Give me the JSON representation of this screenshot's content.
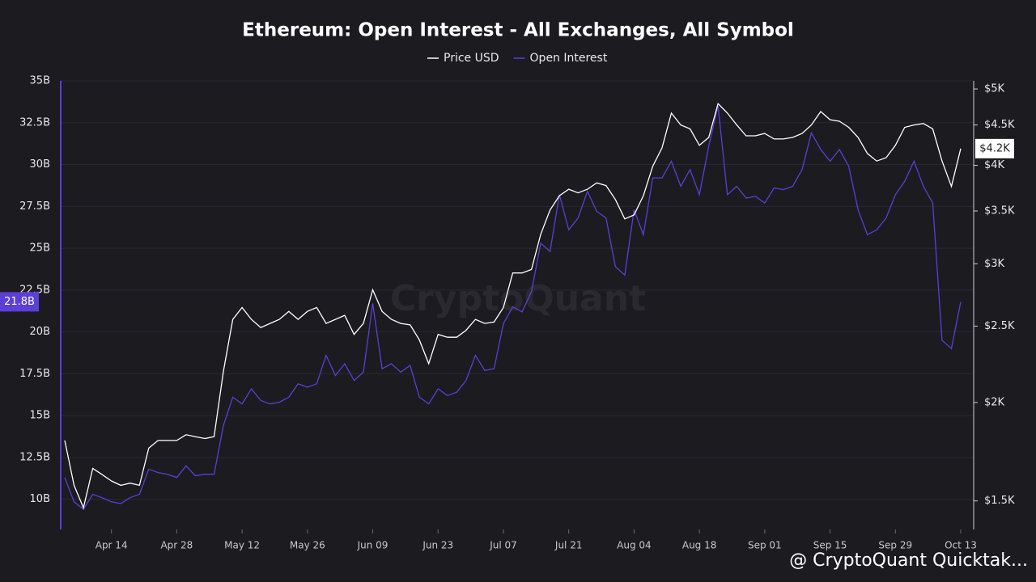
{
  "chart_data": {
    "type": "line",
    "title": "Ethereum: Open Interest - All Exchanges, All Symbol",
    "watermark": "CryptoQuant",
    "attribution": "@ CryptoQuant Quicktak...",
    "legend": "top",
    "categories": [
      "Apr 04",
      "Apr 06",
      "Apr 08",
      "Apr 10",
      "Apr 12",
      "Apr 14",
      "Apr 16",
      "Apr 18",
      "Apr 20",
      "Apr 22",
      "Apr 24",
      "Apr 26",
      "Apr 28",
      "Apr 30",
      "May 02",
      "May 04",
      "May 06",
      "May 08",
      "May 10",
      "May 12",
      "May 14",
      "May 16",
      "May 18",
      "May 20",
      "May 22",
      "May 24",
      "May 26",
      "May 28",
      "May 30",
      "Jun 01",
      "Jun 03",
      "Jun 05",
      "Jun 07",
      "Jun 09",
      "Jun 11",
      "Jun 13",
      "Jun 15",
      "Jun 17",
      "Jun 19",
      "Jun 21",
      "Jun 23",
      "Jun 25",
      "Jun 27",
      "Jun 29",
      "Jul 01",
      "Jul 03",
      "Jul 05",
      "Jul 07",
      "Jul 09",
      "Jul 11",
      "Jul 13",
      "Jul 15",
      "Jul 17",
      "Jul 19",
      "Jul 21",
      "Jul 23",
      "Jul 25",
      "Jul 27",
      "Jul 29",
      "Jul 31",
      "Aug 02",
      "Aug 04",
      "Aug 06",
      "Aug 08",
      "Aug 10",
      "Aug 12",
      "Aug 14",
      "Aug 16",
      "Aug 18",
      "Aug 20",
      "Aug 22",
      "Aug 24",
      "Aug 26",
      "Aug 28",
      "Aug 30",
      "Sep 01",
      "Sep 03",
      "Sep 05",
      "Sep 07",
      "Sep 09",
      "Sep 11",
      "Sep 13",
      "Sep 15",
      "Sep 17",
      "Sep 19",
      "Sep 21",
      "Sep 23",
      "Sep 25",
      "Sep 27",
      "Sep 29",
      "Oct 01",
      "Oct 03",
      "Oct 05",
      "Oct 07",
      "Oct 09",
      "Oct 11",
      "Oct 13"
    ],
    "xticks": [
      "Apr 14",
      "Apr 28",
      "May 12",
      "May 26",
      "Jun 09",
      "Jun 23",
      "Jul 07",
      "Jul 21",
      "Aug 04",
      "Aug 18",
      "Sep 01",
      "Sep 15",
      "Sep 29",
      "Oct 13"
    ],
    "ylim": [
      8.2,
      35
    ],
    "yticks": [
      {
        "value": 10,
        "label": "10B"
      },
      {
        "value": 12.5,
        "label": "12.5B"
      },
      {
        "value": 15,
        "label": "15B"
      },
      {
        "value": 17.5,
        "label": "17.5B"
      },
      {
        "value": 20,
        "label": "20B"
      },
      {
        "value": 22.5,
        "label": "22.5B"
      },
      {
        "value": 25,
        "label": "25B"
      },
      {
        "value": 27.5,
        "label": "27.5B"
      },
      {
        "value": 30,
        "label": "30B"
      },
      {
        "value": 32.5,
        "label": "32.5B"
      },
      {
        "value": 35,
        "label": "35B"
      }
    ],
    "y2lim": [
      1380,
      5120
    ],
    "y2scale": "log",
    "y2ticks": [
      {
        "value": 1500,
        "label": "$1.5K"
      },
      {
        "value": 2000,
        "label": "$2K"
      },
      {
        "value": 2500,
        "label": "$2.5K"
      },
      {
        "value": 3000,
        "label": "$3K"
      },
      {
        "value": 3500,
        "label": "$3.5K"
      },
      {
        "value": 4000,
        "label": "$4K"
      },
      {
        "value": 4500,
        "label": "$4.5K"
      },
      {
        "value": 5000,
        "label": "$5K"
      }
    ],
    "grid": true,
    "series": [
      {
        "name": "Price USD",
        "color": "#ffffff",
        "axis": "y2",
        "current_label": {
          "value": 4200,
          "label": "$4.2K"
        },
        "values": [
          1790,
          1570,
          1470,
          1650,
          1620,
          1590,
          1570,
          1580,
          1570,
          1750,
          1790,
          1790,
          1790,
          1820,
          1810,
          1800,
          1810,
          2190,
          2550,
          2640,
          2550,
          2490,
          2520,
          2550,
          2610,
          2550,
          2610,
          2640,
          2520,
          2550,
          2580,
          2440,
          2520,
          2780,
          2610,
          2550,
          2520,
          2510,
          2400,
          2240,
          2440,
          2420,
          2420,
          2470,
          2550,
          2520,
          2530,
          2640,
          2920,
          2920,
          2950,
          3270,
          3510,
          3660,
          3730,
          3690,
          3730,
          3800,
          3770,
          3620,
          3420,
          3460,
          3660,
          3990,
          4210,
          4660,
          4500,
          4450,
          4240,
          4340,
          4790,
          4660,
          4500,
          4360,
          4360,
          4390,
          4320,
          4320,
          4340,
          4390,
          4500,
          4680,
          4570,
          4550,
          4470,
          4340,
          4140,
          4050,
          4090,
          4240,
          4470,
          4500,
          4520,
          4450,
          4050,
          3760,
          4200
        ]
      },
      {
        "name": "Open Interest",
        "color": "#5b3fd6",
        "axis": "y",
        "current_label": {
          "value": 21.8,
          "label": "21.8B"
        },
        "values": [
          11.3,
          9.85,
          9.4,
          10.3,
          10.1,
          9.85,
          9.75,
          10.1,
          10.3,
          11.8,
          11.6,
          11.5,
          11.3,
          12.0,
          11.4,
          11.5,
          11.5,
          14.4,
          16.1,
          15.7,
          16.6,
          15.9,
          15.7,
          15.8,
          16.1,
          16.9,
          16.7,
          16.9,
          18.6,
          17.4,
          18.1,
          17.1,
          17.6,
          21.7,
          17.8,
          18.1,
          17.6,
          18.0,
          16.1,
          15.7,
          16.6,
          16.2,
          16.4,
          17.1,
          18.6,
          17.7,
          17.8,
          20.5,
          21.5,
          21.2,
          22.4,
          25.3,
          24.8,
          28.2,
          26.1,
          26.8,
          28.4,
          27.2,
          26.8,
          23.9,
          23.4,
          27.3,
          25.8,
          29.2,
          29.2,
          30.2,
          28.7,
          29.7,
          28.2,
          31.1,
          33.5,
          28.2,
          28.7,
          28.0,
          28.1,
          27.7,
          28.6,
          28.5,
          28.7,
          29.7,
          31.9,
          30.9,
          30.2,
          30.9,
          29.9,
          27.3,
          25.8,
          26.1,
          26.8,
          28.2,
          29.0,
          30.2,
          28.7,
          27.7,
          19.5,
          19.0,
          21.8
        ]
      }
    ]
  }
}
